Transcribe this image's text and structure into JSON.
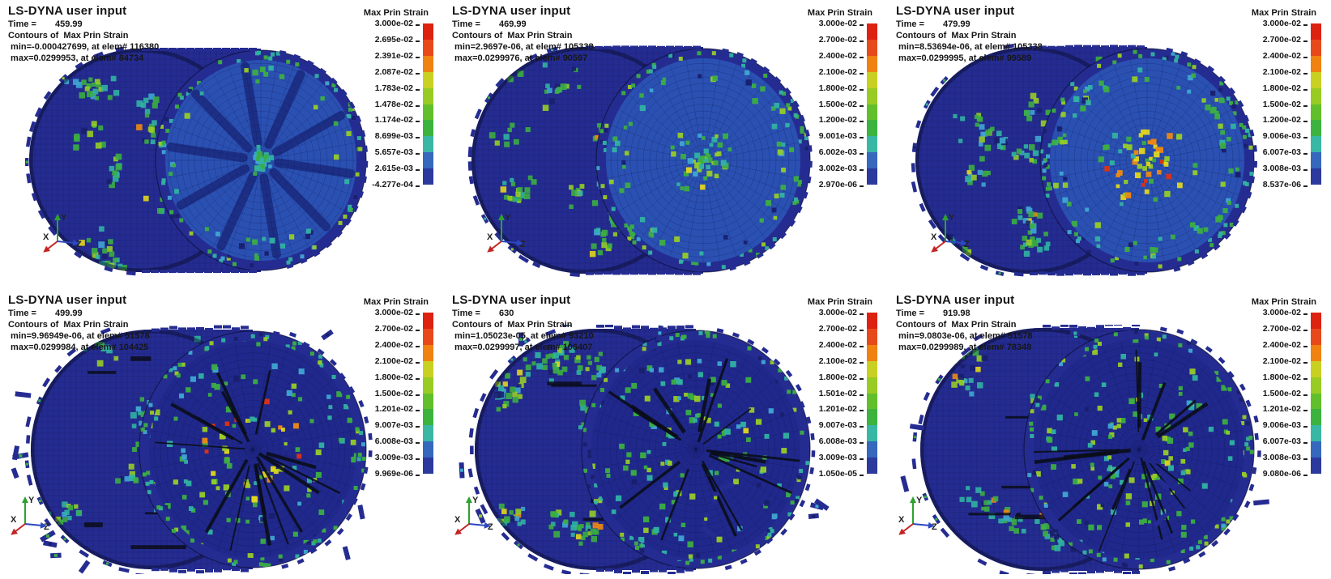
{
  "page": {
    "background": "#ffffff"
  },
  "axis_triad": {
    "x": "X",
    "y": "Y",
    "z": "Z"
  },
  "colorbar_band_colors": [
    "#dd2212",
    "#e8491a",
    "#ef8211",
    "#c8d021",
    "#99cb25",
    "#62bf2c",
    "#3cb33f",
    "#39b7a5",
    "#3668bd",
    "#2b3a9c"
  ],
  "mesh_palette": {
    "body": "#252c91",
    "body_dark": "#191f6e",
    "face": "#2a50b2",
    "face_dark": "#20288c",
    "grid": "#0a1040",
    "green": "#3cae43",
    "teal": "#31b2a2",
    "lime": "#96cc27",
    "cyan": "#3fa6d2",
    "yellow": "#e2d61e",
    "orange": "#ee8a12",
    "red": "#df3115",
    "crack": "#0a0d1a"
  },
  "panels": [
    {
      "title": "LS-DYNA user input",
      "time_label": "Time =",
      "time_value": "459.99",
      "contours_line": "Contours of  Max Prin Strain",
      "min_line": " min=-0.000427699, at elem# 116380",
      "max_line": " max=0.0299953, at elem# 84734",
      "colorbar": {
        "title": "Max Prin Strain",
        "ticks": [
          "3.000e-02",
          "2.695e-02",
          "2.391e-02",
          "2.087e-02",
          "1.783e-02",
          "1.478e-02",
          "1.174e-02",
          "8.699e-03",
          "5.657e-03",
          "2.615e-03",
          "-4.277e-04"
        ]
      }
    },
    {
      "title": "LS-DYNA user input",
      "time_label": "Time =",
      "time_value": "469.99",
      "contours_line": "Contours of  Max Prin Strain",
      "min_line": " min=2.9697e-06, at elem# 105338",
      "max_line": " max=0.0299976, at elem# 90597",
      "colorbar": {
        "title": "Max Prin Strain",
        "ticks": [
          "3.000e-02",
          "2.700e-02",
          "2.400e-02",
          "2.100e-02",
          "1.800e-02",
          "1.500e-02",
          "1.200e-02",
          "9.001e-03",
          "6.002e-03",
          "3.002e-03",
          "2.970e-06"
        ]
      }
    },
    {
      "title": "LS-DYNA user input",
      "time_label": "Time =",
      "time_value": "479.99",
      "contours_line": "Contours of  Max Prin Strain",
      "min_line": " min=8.53694e-06, at elem# 105338",
      "max_line": " max=0.0299995, at elem# 99589",
      "colorbar": {
        "title": "Max Prin Strain",
        "ticks": [
          "3.000e-02",
          "2.700e-02",
          "2.400e-02",
          "2.100e-02",
          "1.800e-02",
          "1.500e-02",
          "1.200e-02",
          "9.006e-03",
          "6.007e-03",
          "3.008e-03",
          "8.537e-06"
        ]
      }
    },
    {
      "title": "LS-DYNA user input",
      "time_label": "Time =",
      "time_value": "499.99",
      "contours_line": "Contours of  Max Prin Strain",
      "min_line": " min=9.96949e-06, at elem# 51578",
      "max_line": " max=0.0299984, at elem# 104425",
      "colorbar": {
        "title": "Max Prin Strain",
        "ticks": [
          "3.000e-02",
          "2.700e-02",
          "2.400e-02",
          "2.100e-02",
          "1.800e-02",
          "1.500e-02",
          "1.201e-02",
          "9.007e-03",
          "6.008e-03",
          "3.009e-03",
          "9.969e-06"
        ]
      }
    },
    {
      "title": "LS-DYNA user input",
      "time_label": "Time =",
      "time_value": "630",
      "contours_line": "Contours of  Max Prin Strain",
      "min_line": " min=1.05023e-05, at elem# 93210",
      "max_line": " max=0.0299997, at elem# 106407",
      "colorbar": {
        "title": "Max Prin Strain",
        "ticks": [
          "3.000e-02",
          "2.700e-02",
          "2.400e-02",
          "2.100e-02",
          "1.800e-02",
          "1.501e-02",
          "1.201e-02",
          "9.007e-03",
          "6.008e-03",
          "3.009e-03",
          "1.050e-05"
        ]
      }
    },
    {
      "title": "LS-DYNA user input",
      "time_label": "Time =",
      "time_value": "919.98",
      "contours_line": "Contours of  Max Prin Strain",
      "min_line": " min=9.0803e-06, at elem# 51578",
      "max_line": " max=0.0299989, at elem# 78348",
      "colorbar": {
        "title": "Max Prin Strain",
        "ticks": [
          "3.000e-02",
          "2.700e-02",
          "2.400e-02",
          "2.100e-02",
          "1.800e-02",
          "1.500e-02",
          "1.201e-02",
          "9.006e-03",
          "6.007e-03",
          "3.008e-03",
          "9.080e-06"
        ]
      }
    }
  ]
}
